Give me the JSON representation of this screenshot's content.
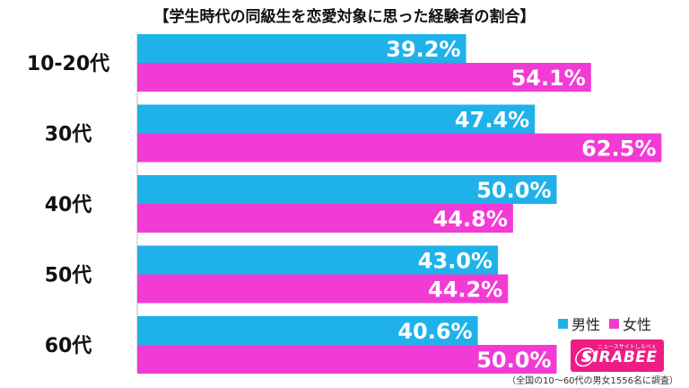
{
  "chart_data": {
    "type": "bar",
    "orientation": "horizontal",
    "title": "【学生時代の同級生を恋愛対象に思った経験者の割合】",
    "categories": [
      "10-20代",
      "30代",
      "40代",
      "50代",
      "60代"
    ],
    "series": [
      {
        "name": "男性",
        "values": [
          39.2,
          47.4,
          50.0,
          43.0,
          40.6
        ],
        "color": "#1fb2ea"
      },
      {
        "name": "女性",
        "values": [
          54.1,
          62.5,
          44.8,
          44.2,
          50.0
        ],
        "color": "#f23bd4"
      }
    ],
    "value_labels": [
      [
        "39.2%",
        "47.4%",
        "50.0%",
        "43.0%",
        "40.6%"
      ],
      [
        "54.1%",
        "62.5%",
        "44.8%",
        "44.2%",
        "50.0%"
      ]
    ],
    "xlim": [
      0,
      70
    ],
    "grid": false,
    "legend_position": "bottom-right"
  },
  "logo": {
    "text": "SIRABEE",
    "subtext": "ニュースサイトしらべぇ",
    "color": "#ee1c84"
  },
  "footnote": "（全国の10～60代の男女1556名に調査）"
}
